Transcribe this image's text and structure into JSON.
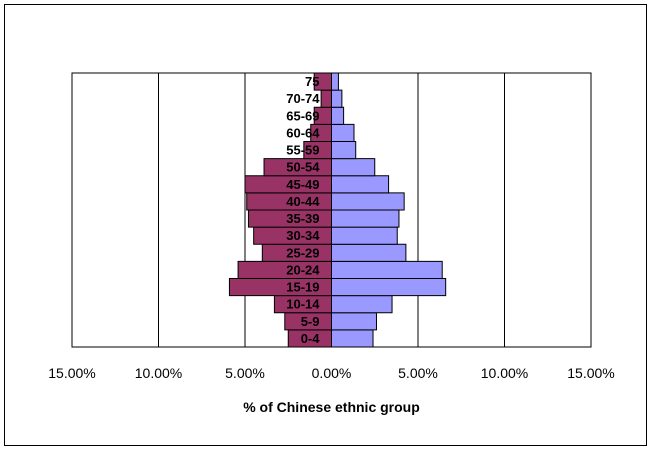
{
  "chart_data": {
    "type": "bar",
    "orientation": "horizontal",
    "title": "",
    "xlabel": "% of Chinese ethnic group",
    "ylabel": "",
    "xlim": [
      -15,
      15
    ],
    "x_ticks": [
      -15,
      -10,
      -5,
      0,
      5,
      10,
      15
    ],
    "x_tick_labels": [
      "15.00%",
      "10.00%",
      "5.00%",
      "0.00%",
      "5.00%",
      "10.00%",
      "15.00%"
    ],
    "grid": "vertical",
    "legend": "none",
    "categories": [
      "0-4",
      "5-9",
      "10-14",
      "15-19",
      "20-24",
      "25-29",
      "30-34",
      "35-39",
      "40-44",
      "45-49",
      "50-54",
      "55-59",
      "60-64",
      "65-69",
      "70-74",
      "75"
    ],
    "series": [
      {
        "color": "#993366",
        "side": "left",
        "values": [
          2.5,
          2.7,
          3.3,
          5.9,
          5.4,
          4.0,
          4.5,
          4.8,
          4.9,
          5.0,
          3.9,
          1.6,
          1.2,
          1.0,
          0.6,
          1.0
        ]
      },
      {
        "color": "#9999ff",
        "side": "right",
        "values": [
          2.4,
          2.6,
          3.5,
          6.6,
          6.4,
          4.3,
          3.8,
          3.9,
          4.2,
          3.3,
          2.5,
          1.4,
          1.3,
          0.7,
          0.6,
          0.4
        ]
      }
    ]
  }
}
